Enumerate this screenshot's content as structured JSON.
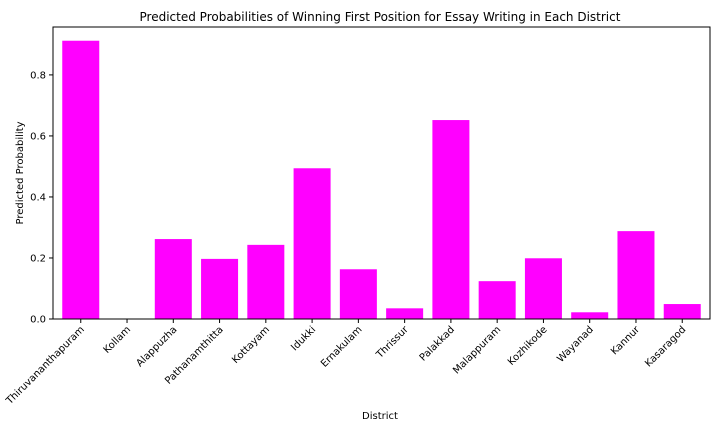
{
  "chart_data": {
    "type": "bar",
    "title": "Predicted Probabilities of Winning First Position for Essay Writing in Each District",
    "xlabel": "District",
    "ylabel": "Predicted Probability",
    "categories": [
      "Thiruvananthapuram",
      "Kollam",
      "Alappuzha",
      "Pathanamthitta",
      "Kottayam",
      "Idukki",
      "Ernakulam",
      "Thrissur",
      "Palakkad",
      "Malappuram",
      "Kozhikode",
      "Wayanad",
      "Kannur",
      "Kasaragod"
    ],
    "values": [
      0.912,
      0.0,
      0.262,
      0.197,
      0.243,
      0.494,
      0.163,
      0.035,
      0.652,
      0.124,
      0.199,
      0.022,
      0.288,
      0.049
    ],
    "ylim": [
      0,
      0.957
    ],
    "yticks": [
      0.0,
      0.2,
      0.4,
      0.6,
      0.8
    ],
    "ytick_labels": [
      "0.0",
      "0.2",
      "0.4",
      "0.6",
      "0.8"
    ],
    "bar_color": "#ff00ff",
    "grid": false
  }
}
